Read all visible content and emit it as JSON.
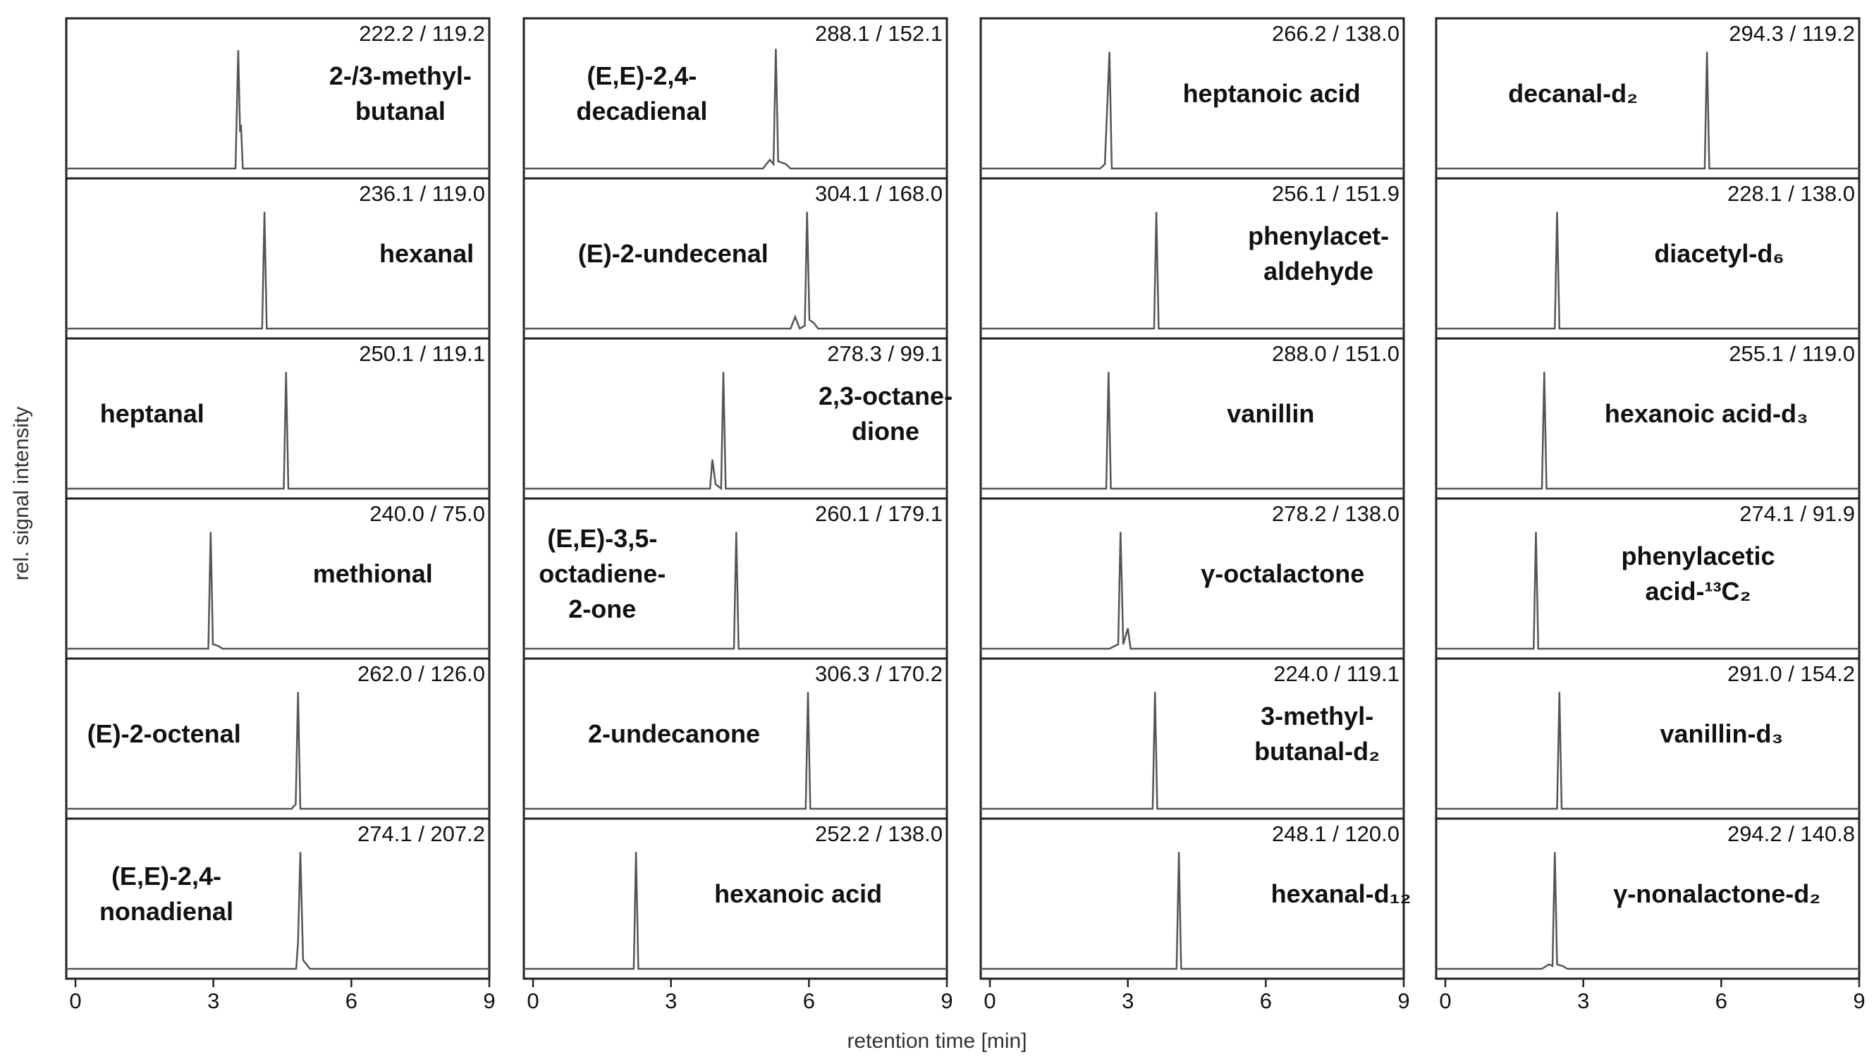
{
  "xlabel": "retention time [min]",
  "ylabel": "rel. signal intensity",
  "chart_data": [
    {
      "type": "line",
      "title": [
        "2-/3-methyl-",
        "butanal"
      ],
      "annotation": "222.2 / 119.2",
      "x": [
        -0.2,
        3.48,
        3.54,
        3.58,
        3.6,
        3.64,
        9
      ],
      "values": [
        0,
        0,
        81,
        25,
        30,
        0,
        0
      ],
      "xlim": [
        -0.2,
        9
      ],
      "ylim": [
        0,
        100
      ]
    },
    {
      "type": "line",
      "title": [
        "hexanal"
      ],
      "annotation": "236.1 / 119.0",
      "x": [
        -0.2,
        4.06,
        4.11,
        4.16,
        9
      ],
      "values": [
        0,
        0,
        80,
        0,
        0
      ],
      "xlim": [
        -0.2,
        9
      ],
      "ylim": [
        0,
        100
      ]
    },
    {
      "type": "line",
      "title": [
        "heptanal"
      ],
      "annotation": "250.1 / 119.1",
      "x": [
        -0.2,
        4.53,
        4.58,
        4.63,
        9
      ],
      "values": [
        0,
        0,
        80,
        0,
        0
      ],
      "xlim": [
        -0.2,
        9
      ],
      "ylim": [
        0,
        100
      ]
    },
    {
      "type": "line",
      "title": [
        "methional"
      ],
      "annotation": "240.0 / 75.0",
      "x": [
        -0.2,
        2.89,
        2.94,
        2.99,
        3.1,
        3.2,
        9
      ],
      "values": [
        0,
        0,
        80,
        3,
        2,
        0,
        0
      ],
      "xlim": [
        -0.2,
        9
      ],
      "ylim": [
        0,
        100
      ]
    },
    {
      "type": "line",
      "title": [
        "(E)-2-octenal"
      ],
      "annotation": "262.0 / 126.0",
      "x": [
        -0.2,
        4.7,
        4.79,
        4.84,
        4.89,
        9
      ],
      "values": [
        0,
        0,
        3,
        80,
        0,
        0
      ],
      "xlim": [
        -0.2,
        9
      ],
      "ylim": [
        0,
        100
      ]
    },
    {
      "type": "line",
      "title": [
        "(E,E)-2,4-",
        "nonadienal"
      ],
      "annotation": "274.1 / 207.2",
      "x": [
        -0.2,
        4.8,
        4.84,
        4.89,
        4.95,
        5.1,
        9
      ],
      "values": [
        0,
        0,
        18,
        80,
        6,
        0,
        0
      ],
      "xticks": [
        0,
        3,
        6,
        9
      ],
      "xlim": [
        -0.2,
        9
      ],
      "ylim": [
        0,
        100
      ]
    },
    {
      "type": "line",
      "title": [
        "(E,E)-2,4-",
        "decadienal"
      ],
      "annotation": "288.1 / 152.1",
      "x": [
        -0.2,
        5.0,
        5.15,
        5.23,
        5.28,
        5.33,
        5.5,
        5.6,
        9
      ],
      "values": [
        0,
        0,
        6,
        3,
        82,
        5,
        3,
        0,
        0
      ],
      "xlim": [
        -0.2,
        9
      ],
      "ylim": [
        0,
        100
      ]
    },
    {
      "type": "line",
      "title": [
        "(E)-2-undecenal"
      ],
      "annotation": "304.1 / 168.0",
      "x": [
        -0.2,
        5.6,
        5.7,
        5.8,
        5.91,
        5.96,
        6.01,
        6.1,
        6.2,
        9
      ],
      "values": [
        0,
        0,
        8,
        0,
        2,
        80,
        6,
        4,
        0,
        0
      ],
      "xlim": [
        -0.2,
        9
      ],
      "ylim": [
        0,
        100
      ]
    },
    {
      "type": "line",
      "title": [
        "2,3-octane-",
        "dione"
      ],
      "annotation": "278.3 / 99.1",
      "x": [
        -0.2,
        3.85,
        3.9,
        3.97,
        4.09,
        4.14,
        4.19,
        9
      ],
      "values": [
        0,
        0,
        20,
        3,
        0,
        80,
        0,
        0
      ],
      "xlim": [
        -0.2,
        9
      ],
      "ylim": [
        0,
        100
      ]
    },
    {
      "type": "line",
      "title": [
        "(E,E)-3,5-",
        "octadiene-",
        "2-one"
      ],
      "annotation": "260.1 / 179.1",
      "x": [
        -0.2,
        4.37,
        4.42,
        4.47,
        9
      ],
      "values": [
        0,
        0,
        80,
        0,
        0
      ],
      "xlim": [
        -0.2,
        9
      ],
      "ylim": [
        0,
        100
      ]
    },
    {
      "type": "line",
      "title": [
        "2-undecanone"
      ],
      "annotation": "306.3 / 170.2",
      "x": [
        -0.2,
        5.93,
        5.98,
        6.03,
        9
      ],
      "values": [
        0,
        0,
        80,
        0,
        0
      ],
      "xlim": [
        -0.2,
        9
      ],
      "ylim": [
        0,
        100
      ]
    },
    {
      "type": "line",
      "title": [
        "hexanoic acid"
      ],
      "annotation": "252.2 / 138.0",
      "x": [
        -0.2,
        2.19,
        2.24,
        2.29,
        9
      ],
      "values": [
        0,
        0,
        80,
        0,
        0
      ],
      "xticks": [
        0,
        3,
        6,
        9
      ],
      "xlim": [
        -0.2,
        9
      ],
      "ylim": [
        0,
        100
      ]
    },
    {
      "type": "line",
      "title": [
        "heptanoic acid"
      ],
      "annotation": "266.2 / 138.0",
      "x": [
        -0.2,
        2.4,
        2.5,
        2.6,
        2.65,
        9
      ],
      "values": [
        0,
        0,
        3,
        80,
        0,
        0
      ],
      "xlim": [
        -0.2,
        9
      ],
      "ylim": [
        0,
        100
      ]
    },
    {
      "type": "line",
      "title": [
        "phenylacet-",
        "aldehyde"
      ],
      "annotation": "256.1 / 151.9",
      "x": [
        -0.2,
        3.57,
        3.62,
        3.67,
        9
      ],
      "values": [
        0,
        0,
        80,
        0,
        0
      ],
      "xlim": [
        -0.2,
        9
      ],
      "ylim": [
        0,
        100
      ]
    },
    {
      "type": "line",
      "title": [
        "vanillin"
      ],
      "annotation": "288.0 / 151.0",
      "x": [
        -0.2,
        2.53,
        2.58,
        2.63,
        9
      ],
      "values": [
        0,
        0,
        80,
        0,
        0
      ],
      "xlim": [
        -0.2,
        9
      ],
      "ylim": [
        0,
        100
      ]
    },
    {
      "type": "line",
      "title": [
        "γ-octalactone"
      ],
      "annotation": "278.2 / 138.0",
      "x": [
        -0.2,
        2.6,
        2.79,
        2.84,
        2.9,
        3.0,
        3.06,
        9
      ],
      "values": [
        0,
        0,
        3,
        80,
        3,
        14,
        0,
        0
      ],
      "xlim": [
        -0.2,
        9
      ],
      "ylim": [
        0,
        100
      ]
    },
    {
      "type": "line",
      "title": [
        "3-methyl-",
        "butanal-d₂"
      ],
      "annotation": "224.0 / 119.1",
      "x": [
        -0.2,
        3.54,
        3.59,
        3.64,
        9
      ],
      "values": [
        0,
        0,
        80,
        0,
        0
      ],
      "xlim": [
        -0.2,
        9
      ],
      "ylim": [
        0,
        100
      ]
    },
    {
      "type": "line",
      "title": [
        "hexanal-d₁₂"
      ],
      "annotation": "248.1 / 120.0",
      "x": [
        -0.2,
        4.06,
        4.11,
        4.16,
        9
      ],
      "values": [
        0,
        0,
        80,
        0,
        0
      ],
      "xticks": [
        0,
        3,
        6,
        9
      ],
      "xlim": [
        -0.2,
        9
      ],
      "ylim": [
        0,
        100
      ]
    },
    {
      "type": "line",
      "title": [
        "decanal-d₂"
      ],
      "annotation": "294.3 / 119.2",
      "x": [
        -0.2,
        5.64,
        5.69,
        5.74,
        9
      ],
      "values": [
        0,
        0,
        80,
        0,
        0
      ],
      "xlim": [
        -0.2,
        9
      ],
      "ylim": [
        0,
        100
      ]
    },
    {
      "type": "line",
      "title": [
        "diacetyl-d₆"
      ],
      "annotation": "228.1 / 138.0",
      "x": [
        -0.2,
        2.38,
        2.43,
        2.48,
        9
      ],
      "values": [
        0,
        0,
        80,
        0,
        0
      ],
      "xlim": [
        -0.2,
        9
      ],
      "ylim": [
        0,
        100
      ]
    },
    {
      "type": "line",
      "title": [
        "hexanoic acid-d₃"
      ],
      "annotation": "255.1 / 119.0",
      "x": [
        -0.2,
        2.1,
        2.15,
        2.2,
        9
      ],
      "values": [
        0,
        0,
        80,
        0,
        0
      ],
      "xlim": [
        -0.2,
        9
      ],
      "ylim": [
        0,
        100
      ]
    },
    {
      "type": "line",
      "title": [
        "phenylacetic",
        "acid-¹³C₂"
      ],
      "annotation": "274.1 / 91.9",
      "x": [
        -0.2,
        1.92,
        1.97,
        2.02,
        9
      ],
      "values": [
        0,
        0,
        80,
        0,
        0
      ],
      "xlim": [
        -0.2,
        9
      ],
      "ylim": [
        0,
        100
      ]
    },
    {
      "type": "line",
      "title": [
        "vanillin-d₃"
      ],
      "annotation": "291.0 / 154.2",
      "x": [
        -0.2,
        2.43,
        2.48,
        2.53,
        9
      ],
      "values": [
        0,
        0,
        80,
        0,
        0
      ],
      "xlim": [
        -0.2,
        9
      ],
      "ylim": [
        0,
        100
      ]
    },
    {
      "type": "line",
      "title": [
        "γ-nonalactone-d₂"
      ],
      "annotation": "294.2 / 140.8",
      "x": [
        -0.2,
        2.1,
        2.25,
        2.33,
        2.38,
        2.43,
        2.55,
        2.65,
        9
      ],
      "values": [
        0,
        0,
        3,
        2,
        80,
        3,
        2,
        0,
        0
      ],
      "xticks": [
        0,
        3,
        6,
        9
      ],
      "xlim": [
        -0.2,
        9
      ],
      "ylim": [
        0,
        100
      ]
    }
  ]
}
